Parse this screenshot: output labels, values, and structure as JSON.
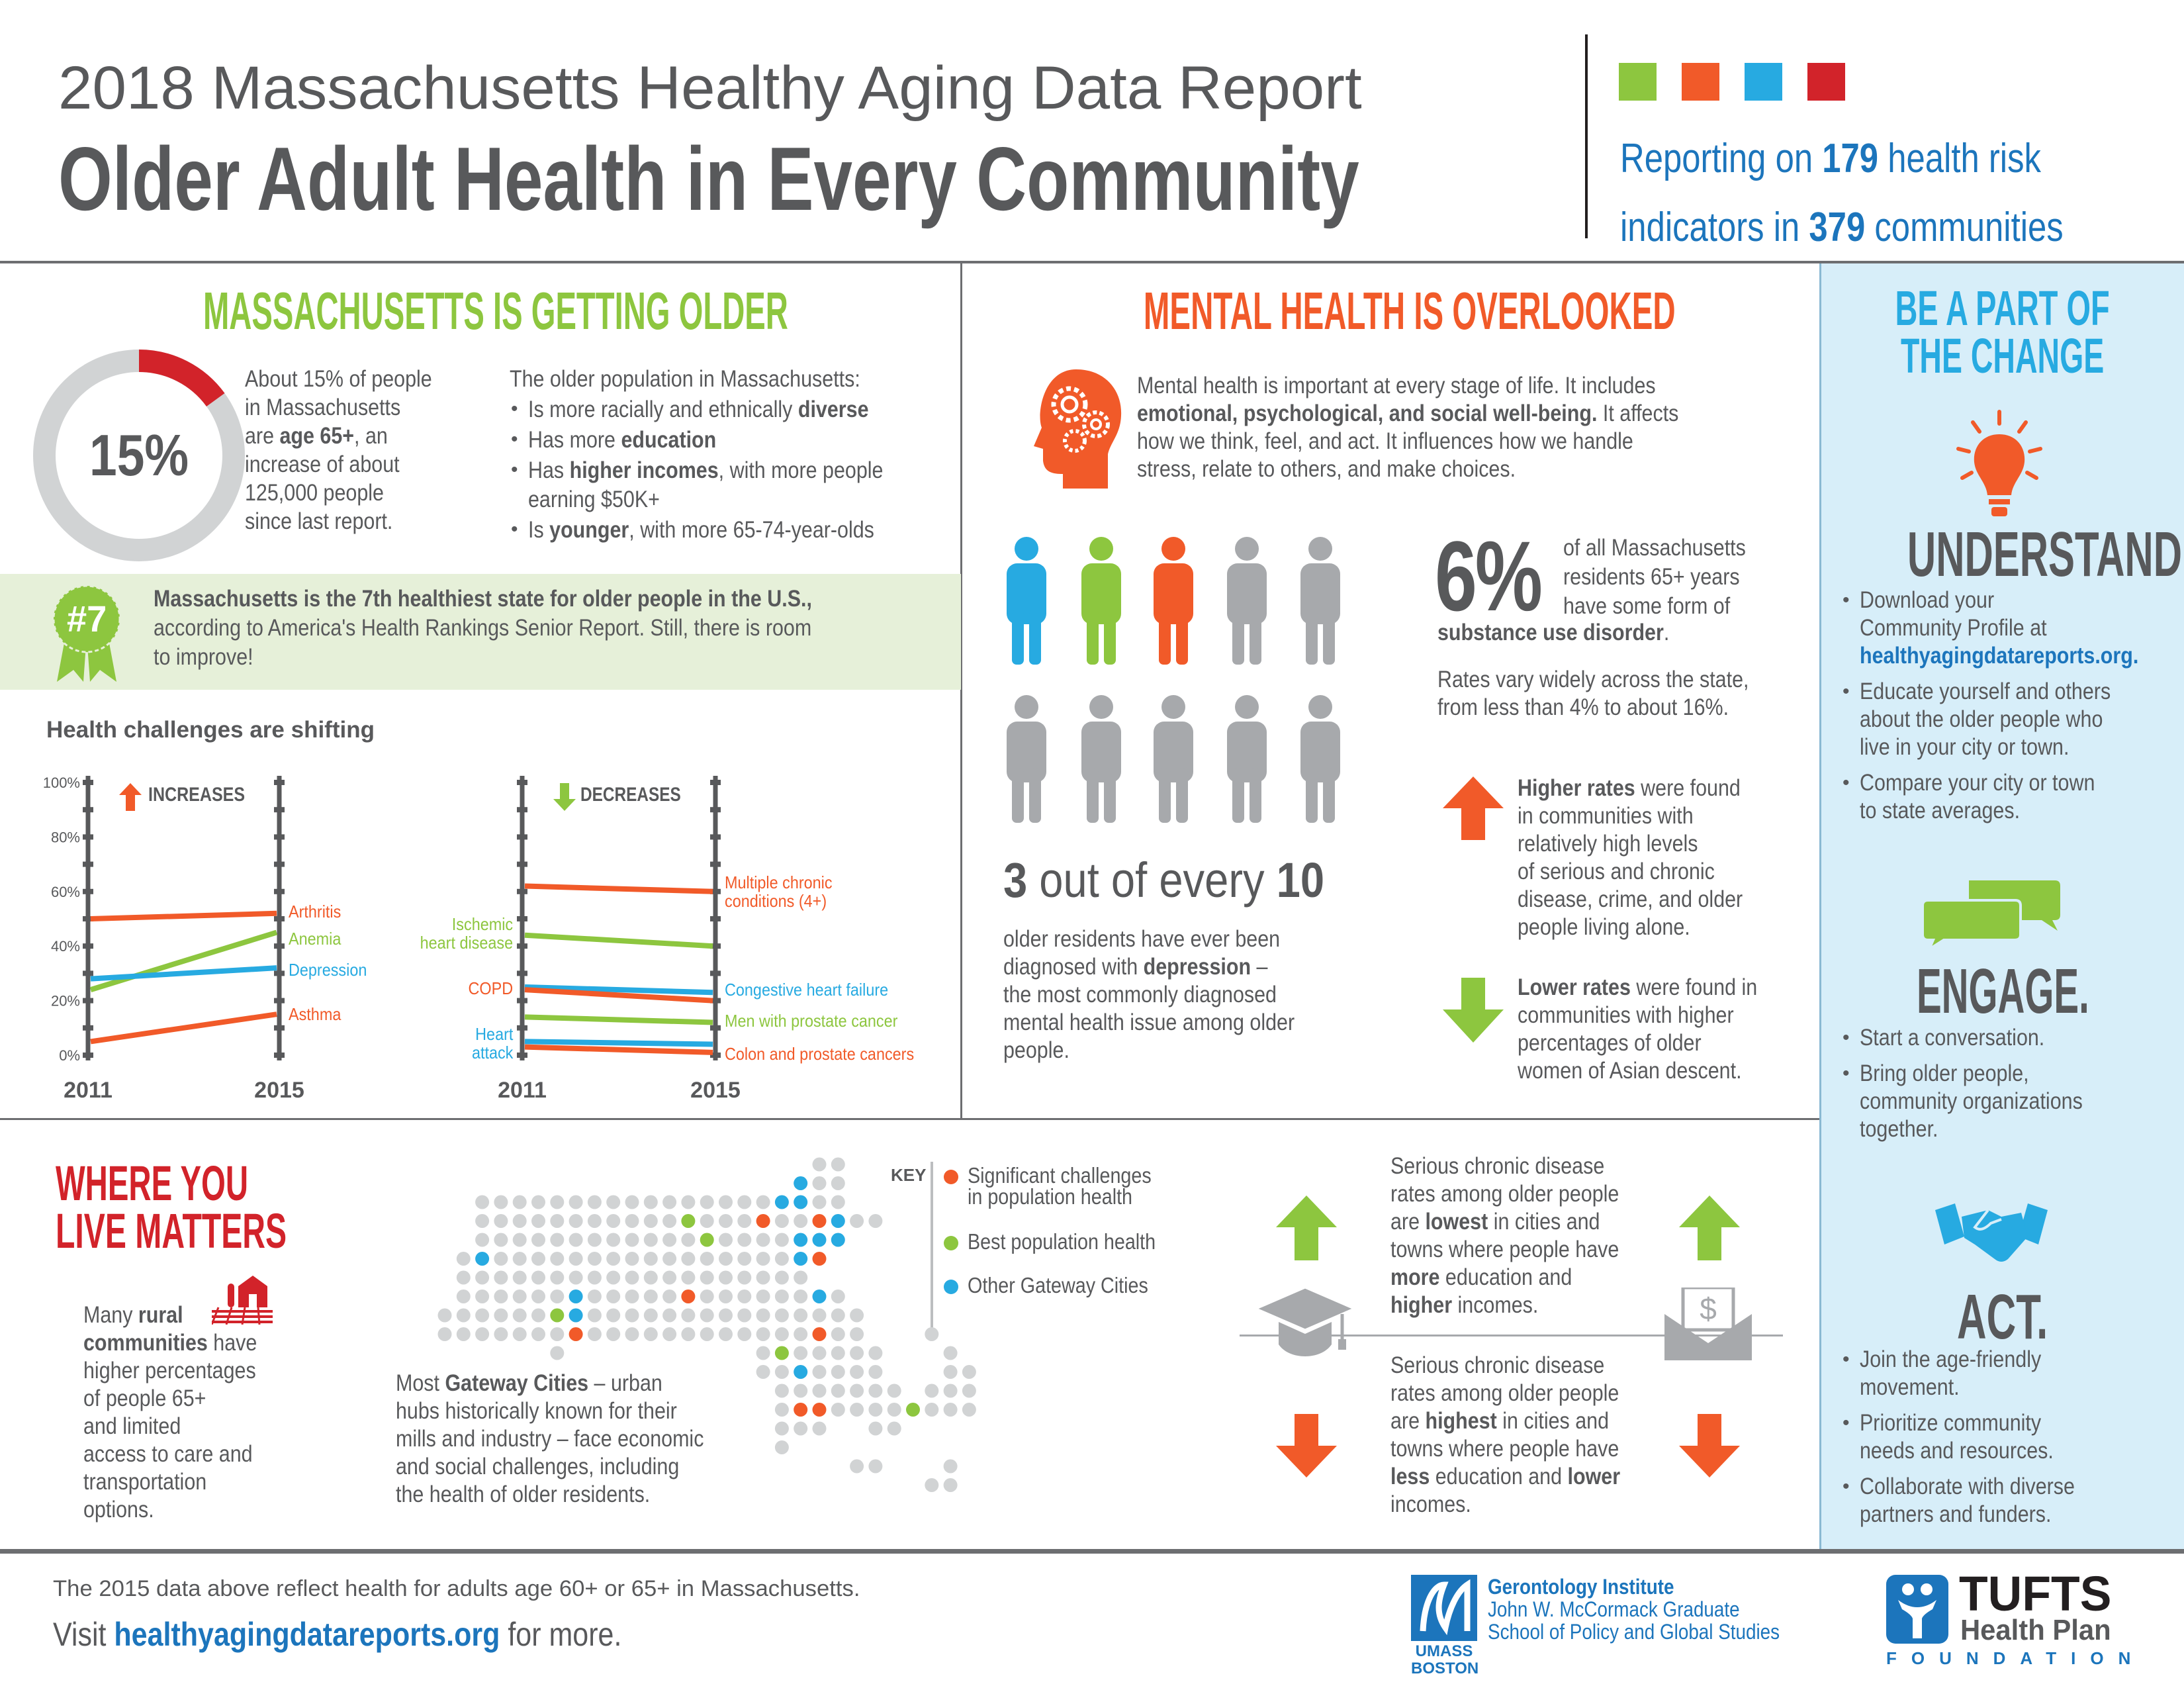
{
  "header": {
    "line1": "2018 Massachusetts Healthy Aging Data Report",
    "line2": "Older Adult Health in Every Community",
    "squares": [
      "#8dc63f",
      "#f15a29",
      "#27aae1",
      "#d2232a"
    ],
    "reporting": [
      [
        "Reporting on ",
        {
          "b": "179"
        },
        " health risk"
      ],
      [
        "indicators in ",
        {
          "b": "379"
        },
        " communities"
      ]
    ]
  },
  "colors": {
    "green": "#8dc63f",
    "orange": "#f15a29",
    "blue": "#27aae1",
    "red": "#d2232a",
    "gray": "#d1d3d4"
  },
  "left": {
    "heading": "MASSACHUSETTS IS GETTING OLDER",
    "donut": {
      "value": "15%",
      "fraction": 0.15
    },
    "about": [
      "About 15% of people",
      "in Massachusetts",
      [
        "are ",
        {
          "b": "age 65+"
        },
        ", an"
      ],
      "increase of about",
      "125,000 people",
      "since last report."
    ],
    "older_intro": [
      "The older population in Massachusetts:"
    ],
    "older_bullets": [
      [
        [
          "Is more racially and ethnically ",
          {
            "b": "diverse"
          }
        ]
      ],
      [
        [
          "Has more ",
          {
            "b": "education"
          }
        ]
      ],
      [
        [
          "Has ",
          {
            "b": "higher incomes"
          },
          ", with more people"
        ],
        "earning $50K+"
      ],
      [
        [
          "Is ",
          {
            "b": "younger"
          },
          ", with more 65-74-year-olds"
        ]
      ]
    ],
    "badge": "#7",
    "band": [
      [
        {
          "b": "Massachusetts is the 7th healthiest state for older people in the U.S.,"
        }
      ],
      "according to America's Health Rankings Senior Report. Still, there is room",
      "to improve!"
    ],
    "chart_heading": "Health challenges are shifting"
  },
  "chart_data": [
    {
      "type": "line",
      "title": "INCREASES",
      "x": [
        "2011",
        "2015"
      ],
      "ylim": [
        0,
        100
      ],
      "yticks": [
        "0%",
        "20%",
        "40%",
        "60%",
        "80%",
        "100%"
      ],
      "grid": false,
      "series": [
        {
          "name": "Arthritis",
          "values": [
            50,
            52
          ],
          "color": "#f15a29",
          "label_side": "right"
        },
        {
          "name": "Anemia",
          "values": [
            24,
            45
          ],
          "color": "#8dc63f",
          "label_side": "right"
        },
        {
          "name": "Depression",
          "values": [
            28,
            32
          ],
          "color": "#27aae1",
          "label_side": "right"
        },
        {
          "name": "Asthma",
          "values": [
            5,
            15
          ],
          "color": "#f15a29",
          "label_side": "right"
        }
      ]
    },
    {
      "type": "line",
      "title": "DECREASES",
      "x": [
        "2011",
        "2015"
      ],
      "ylim": [
        0,
        100
      ],
      "grid": false,
      "series": [
        {
          "name": "Multiple chronic\nconditions (4+)",
          "values": [
            62,
            60
          ],
          "color": "#f15a29",
          "label_side": "right"
        },
        {
          "name": "Ischemic\nheart disease",
          "values": [
            44,
            40
          ],
          "color": "#8dc63f",
          "label_side": "left"
        },
        {
          "name": "Congestive heart failure",
          "values": [
            25,
            23
          ],
          "color": "#27aae1",
          "label_side": "right"
        },
        {
          "name": "COPD",
          "values": [
            24,
            20
          ],
          "color": "#f15a29",
          "label_side": "left"
        },
        {
          "name": "Men with prostate cancer",
          "values": [
            14,
            12
          ],
          "color": "#8dc63f",
          "label_side": "right"
        },
        {
          "name": "Heart\nattack",
          "values": [
            5,
            4
          ],
          "color": "#27aae1",
          "label_side": "left"
        },
        {
          "name": "Colon and prostate cancers",
          "values": [
            3,
            1
          ],
          "color": "#f15a29",
          "label_side": "right"
        }
      ]
    }
  ],
  "mental": {
    "heading": "MENTAL HEALTH IS OVERLOOKED",
    "intro": [
      "Mental health is important at every stage of life. It includes",
      [
        {
          "b": "emotional, psychological, and social well-being."
        },
        " It affects"
      ],
      "how we think, feel, and act. It influences how we handle",
      "stress, relate to others, and make choices."
    ],
    "people_colors": [
      "#27aae1",
      "#8dc63f",
      "#f15a29",
      "#a7a9ac",
      "#a7a9ac",
      "#a7a9ac",
      "#a7a9ac",
      "#a7a9ac",
      "#a7a9ac",
      "#a7a9ac"
    ],
    "stat": [
      [
        {
          "b": "3"
        },
        " out of every ",
        {
          "b": "10"
        }
      ]
    ],
    "depression": [
      "older residents have ever been",
      [
        "diagnosed with ",
        {
          "b": "depression"
        },
        " –"
      ],
      "the most commonly diagnosed",
      "mental health issue among older",
      "people."
    ],
    "six_value": "6%",
    "six_text": [
      "of all Massachusetts",
      "residents 65+ years",
      "have some form of"
    ],
    "six_tail": [
      [
        {
          "b": "substance use disorder"
        },
        "."
      ]
    ],
    "rates": [
      "Rates vary widely across the state,",
      "from less than 4% to about 16%."
    ],
    "higher": [
      [
        {
          "b": "Higher rates"
        },
        " were found"
      ],
      "in communities with",
      "relatively high levels",
      "of serious and chronic",
      "disease, crime, and older",
      "people living alone."
    ],
    "lower": [
      [
        {
          "b": "Lower rates"
        },
        " were found in"
      ],
      "communities with higher",
      "percentages of older",
      "women of Asian descent."
    ]
  },
  "where": {
    "heading": [
      "WHERE YOU",
      "LIVE MATTERS"
    ],
    "rural": [
      [
        "Many ",
        {
          "b": "rural"
        }
      ],
      [
        {
          "b": "communities"
        },
        " have"
      ],
      "higher percentages",
      "of people 65+",
      "and limited",
      "access to care and",
      "transportation",
      "options."
    ],
    "gateway": [
      [
        "Most ",
        {
          "b": "Gateway Cities"
        },
        " – urban"
      ],
      "hubs historically known for their",
      "mills and industry – face economic",
      "and social challenges, including",
      "the health of older residents."
    ],
    "key_label": "KEY",
    "key": [
      {
        "lines": [
          "Significant challenges",
          "in population health"
        ],
        "color": "#f15a29"
      },
      {
        "lines": [
          "Best population health"
        ],
        "color": "#8dc63f"
      },
      {
        "lines": [
          "Other Gateway Cities"
        ],
        "color": "#27aae1"
      }
    ],
    "map": {
      "rows": [
        "                    ..",
        "                   b..",
        "  ................bb..",
        "  ...........g...o..ob..",
        "  ............g....bbb",
        " .b................bo",
        " ...................",
        " ......b.....o......b.",
        "......gb...............",
        ".......o............o..   .",
        "      .          .g.....   .",
        "                 ..b....   ..",
        "                  ....... ...",
        "                  .oo....g...",
        "                  ...  ..",
        "                  .",
        "                      ..   .",
        "                          .."
      ],
      "legend": {
        ".": "#d1d3d4",
        "o": "#f15a29",
        "g": "#8dc63f",
        "b": "#27aae1"
      }
    },
    "chronic_low": [
      "Serious chronic disease",
      "rates among older people",
      [
        "are ",
        {
          "b": "lowest"
        },
        " in cities and"
      ],
      "towns where people have",
      [
        {
          "b": "more"
        },
        " education and"
      ],
      [
        {
          "b": "higher"
        },
        " incomes."
      ]
    ],
    "chronic_high": [
      "Serious chronic disease",
      "rates among older people",
      [
        "are ",
        {
          "b": "highest"
        },
        " in cities and"
      ],
      "towns where people have",
      [
        {
          "b": "less"
        },
        " education and ",
        {
          "b": "lower"
        }
      ],
      "incomes."
    ]
  },
  "right": {
    "heading": [
      "BE A PART OF",
      "THE CHANGE"
    ],
    "understand": {
      "title": "UNDERSTAND.",
      "items": [
        [
          "Download your",
          "Community Profile at",
          [
            {
              "l": "healthyagingdatareports.org."
            }
          ]
        ],
        [
          "Educate yourself and others",
          "about the older people who",
          "live in your city or town."
        ],
        [
          "Compare your city or town",
          "to state averages."
        ]
      ]
    },
    "engage": {
      "title": "ENGAGE.",
      "items": [
        [
          "Start a conversation."
        ],
        [
          "Bring older people,",
          "community organizations",
          "together."
        ]
      ]
    },
    "act": {
      "title": "ACT.",
      "items": [
        [
          "Join the age-friendly",
          "movement."
        ],
        [
          "Prioritize community",
          "needs and resources."
        ],
        [
          "Collaborate with diverse",
          "partners and funders."
        ]
      ]
    }
  },
  "footer": {
    "note": "The 2015 data above reflect health for adults age 60+ or 65+ in Massachusetts.",
    "visit": [
      [
        "Visit ",
        {
          "l": "healthyagingdatareports.org"
        },
        " for more."
      ]
    ],
    "umass": {
      "logo_lines": [
        "UMASS",
        "BOSTON"
      ],
      "lines": [
        "Gerontology Institute",
        "John W. McCormack Graduate",
        "School of  Policy and Global Studies"
      ]
    },
    "tufts": {
      "name": "TUFTS",
      "sub": "Health Plan",
      "foundation": "FOUNDATION"
    }
  }
}
